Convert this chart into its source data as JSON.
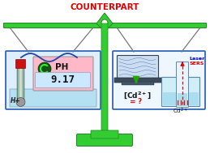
{
  "title": "COUNTERPART",
  "title_color": "#dd0000",
  "bg_color": "#ffffff",
  "green": "#33cc33",
  "green_dark": "#228822",
  "blue_border": "#3366bb",
  "left_panel_bg": "#ddeeff",
  "right_panel_bg": "#eef6ff",
  "water_color": "#aaddee",
  "ph_box_bg": "#ffb8c8",
  "ph_val_bg": "#cce8ff",
  "ph_text": "PH",
  "ph_value": "9.17",
  "left_label": "H+",
  "laser_label": "Laser",
  "sers_label": "SERS",
  "cd_bottom": "Cd2+"
}
